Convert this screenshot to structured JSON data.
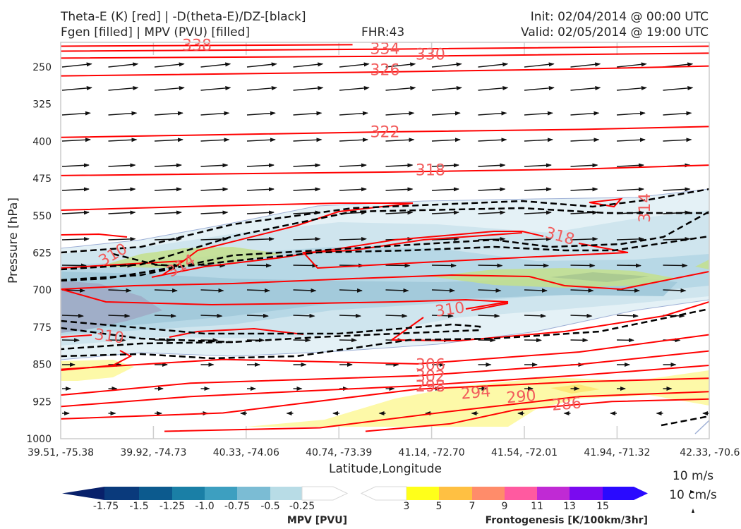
{
  "header": {
    "title_line1": "Theta-E (K) [red] | -D(theta-E)/DZ-[black]",
    "title_line2": "Fgen [filled] | MPV (PVU) [filled]",
    "fhr": "FHR:43",
    "init": "Init: 02/04/2014 @ 00:00 UTC",
    "valid": "Valid: 02/05/2014 @ 19:00 UTC"
  },
  "chart_data": {
    "type": "cross-section",
    "title": "Theta-E (K) [red] | -D(theta-E)/DZ-[black] / Fgen [filled] | MPV (PVU) [filled]",
    "xlabel": "Latitude,Longitude",
    "ylabel": "Pressure [hPa]",
    "x_tick_labels": [
      "39.51, -75.38",
      "39.92, -74.73",
      "40.33, -74.06",
      "40.74, -73.39",
      "41.14, -72.70",
      "41.54, -72.01",
      "41.94, -71.32",
      "42.33, -70.6"
    ],
    "y_ticks": [
      250,
      325,
      400,
      475,
      550,
      625,
      700,
      775,
      850,
      925,
      1000
    ],
    "ylim": [
      1000,
      200
    ],
    "y_inverted": true,
    "theta_e_contours": [
      {
        "value": 338,
        "label": "338",
        "points": [
          [
            0,
            208
          ],
          [
            0.45,
            205
          ]
        ]
      },
      {
        "value": 334,
        "label": "334",
        "points": [
          [
            0,
            218
          ],
          [
            0.5,
            214
          ],
          [
            1,
            208
          ]
        ]
      },
      {
        "value": 330,
        "label": "330",
        "points": [
          [
            0,
            232
          ],
          [
            0.55,
            228
          ],
          [
            1,
            222
          ]
        ]
      },
      {
        "value": 326,
        "label": "326",
        "points": [
          [
            0,
            268
          ],
          [
            0.5,
            260
          ],
          [
            0.8,
            254
          ],
          [
            1,
            248
          ]
        ]
      },
      {
        "value": 322,
        "label": "322",
        "points": [
          [
            0,
            392
          ],
          [
            0.5,
            381
          ],
          [
            0.8,
            376
          ],
          [
            1,
            370
          ]
        ]
      },
      {
        "value": 318,
        "label": "318",
        "points": [
          [
            0,
            469
          ],
          [
            0.5,
            462
          ],
          [
            0.8,
            456
          ],
          [
            1,
            448
          ]
        ]
      }
    ],
    "theta_e_labels": [
      {
        "text": "338",
        "x": 0.21,
        "p": 205,
        "angle": 0
      },
      {
        "text": "334",
        "x": 0.5,
        "p": 212,
        "angle": 0
      },
      {
        "text": "330",
        "x": 0.57,
        "p": 224,
        "angle": 0
      },
      {
        "text": "326",
        "x": 0.5,
        "p": 255,
        "angle": 0
      },
      {
        "text": "322",
        "x": 0.5,
        "p": 380,
        "angle": 0
      },
      {
        "text": "318",
        "x": 0.57,
        "p": 457,
        "angle": 0
      },
      {
        "text": "318",
        "x": 0.77,
        "p": 590,
        "angle": 15
      },
      {
        "text": "314",
        "x": 0.9,
        "p": 534,
        "angle": -90
      },
      {
        "text": "314",
        "x": 0.185,
        "p": 650,
        "angle": -30
      },
      {
        "text": "310",
        "x": 0.08,
        "p": 628,
        "angle": -30
      },
      {
        "text": "310",
        "x": 0.6,
        "p": 738,
        "angle": -8
      },
      {
        "text": "310",
        "x": 0.075,
        "p": 792,
        "angle": 8
      },
      {
        "text": "306",
        "x": 0.57,
        "p": 850,
        "angle": 0
      },
      {
        "text": "302",
        "x": 0.57,
        "p": 873,
        "angle": 0
      },
      {
        "text": "298",
        "x": 0.57,
        "p": 893,
        "angle": 0
      },
      {
        "text": "294",
        "x": 0.64,
        "p": 906,
        "angle": -5
      },
      {
        "text": "290",
        "x": 0.71,
        "p": 914,
        "angle": -5
      },
      {
        "text": "286",
        "x": 0.78,
        "p": 929,
        "angle": -5
      }
    ],
    "lower_theta_e": [
      {
        "value": 306,
        "points": [
          [
            0,
            860
          ],
          [
            0.25,
            840
          ],
          [
            0.55,
            849
          ],
          [
            0.8,
            825
          ],
          [
            1,
            790
          ]
        ]
      },
      {
        "value": 302,
        "points": [
          [
            0,
            912
          ],
          [
            0.2,
            888
          ],
          [
            0.55,
            873
          ],
          [
            0.8,
            850
          ],
          [
            1,
            823
          ]
        ]
      },
      {
        "value": 298,
        "points": [
          [
            0,
            935
          ],
          [
            0.2,
            915
          ],
          [
            0.55,
            893
          ],
          [
            0.8,
            872
          ],
          [
            1,
            852
          ]
        ]
      },
      {
        "value": 294,
        "points": [
          [
            0,
            960
          ],
          [
            0.25,
            948
          ],
          [
            0.55,
            900
          ],
          [
            0.8,
            885
          ],
          [
            1,
            878
          ]
        ]
      },
      {
        "value": 290,
        "points": [
          [
            0.16,
            985
          ],
          [
            0.4,
            978
          ],
          [
            0.6,
            945
          ],
          [
            0.8,
            915
          ],
          [
            1,
            905
          ]
        ]
      },
      {
        "value": 286,
        "points": [
          [
            0.47,
            985
          ],
          [
            0.6,
            970
          ],
          [
            0.7,
            942
          ],
          [
            0.85,
            925
          ],
          [
            1,
            920
          ]
        ]
      }
    ],
    "mpv_colorbar": {
      "label": "MPV [PVU]",
      "ticks": [
        "-1.75",
        "-1.5",
        "-1.25",
        "-1.0",
        "-0.75",
        "-0.5",
        "-0.25"
      ],
      "colors": [
        "#08206a",
        "#0a3a7c",
        "#0c5a8e",
        "#1a7fa6",
        "#3d9fc0",
        "#7bbcd4",
        "#b8dce6",
        "#ffffff"
      ]
    },
    "fgen_colorbar": {
      "label": "Frontogenesis [K/100km/3hr]",
      "ticks": [
        "3",
        "5",
        "7",
        "9",
        "11",
        "13",
        "15"
      ],
      "colors": [
        "#ffffff",
        "#ffff1a",
        "#ffc042",
        "#ff8c6a",
        "#ff5aa0",
        "#c02ad4",
        "#7a0af0",
        "#2a0aff"
      ]
    },
    "vector_key": {
      "label1": "10 m/s",
      "label2": "10 cm/s"
    }
  }
}
